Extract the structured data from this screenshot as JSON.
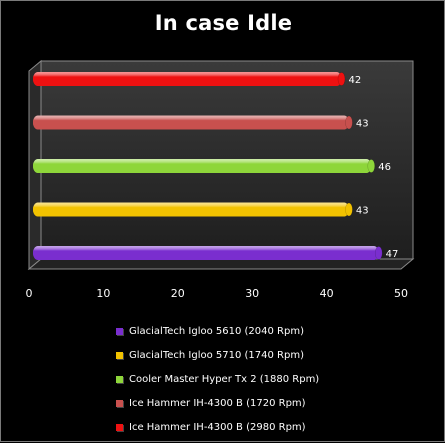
{
  "chart_data": {
    "type": "bar",
    "orientation": "horizontal",
    "title": "In case Idle",
    "xlim": [
      0,
      50
    ],
    "xticks": [
      0,
      10,
      20,
      30,
      40,
      50
    ],
    "grid": false,
    "legend_position": "bottom",
    "categories": [
      "GlacialTech Igloo 5610 (2040 Rpm)",
      "GlacialTech Igloo 5710 (1740 Rpm)",
      "Cooler Master Hyper Tx 2 (1880 Rpm)",
      "Ice Hammer IH-4300 B (1720 Rpm)",
      "Ice Hammer IH-4300 B (2980 Rpm)"
    ],
    "values": [
      47,
      43,
      46,
      43,
      42
    ],
    "colors": [
      "#7a2ecf",
      "#f2c200",
      "#8ed63a",
      "#c8504e",
      "#ee1111"
    ],
    "value_labels": [
      "47",
      "43",
      "46",
      "43",
      "42"
    ],
    "tick_labels": [
      "0",
      "10",
      "20",
      "30",
      "40",
      "50"
    ]
  }
}
